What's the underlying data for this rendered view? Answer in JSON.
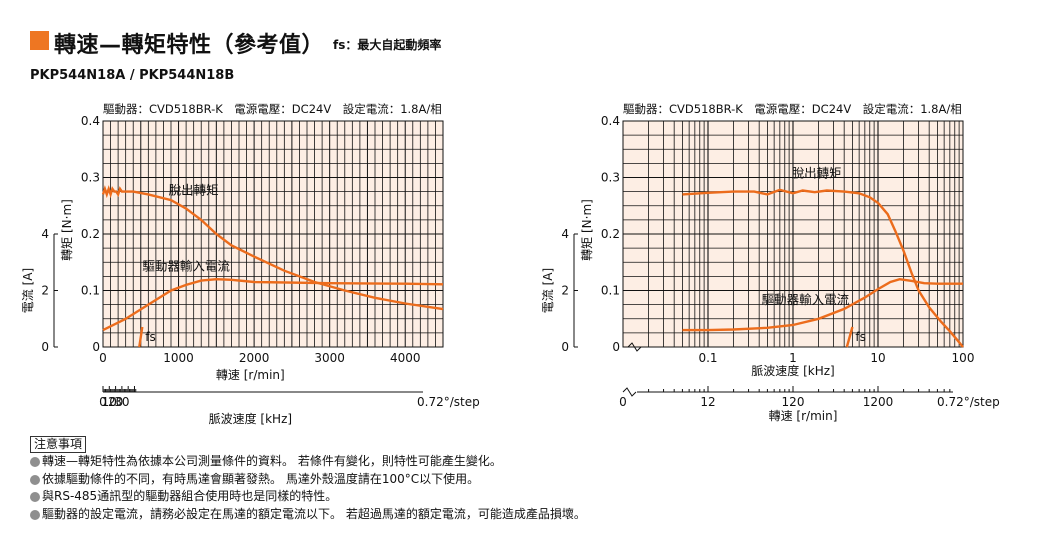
{
  "header": {
    "title": "轉速—轉矩特性（參考值）",
    "note": "fs：最大自起動頻率",
    "model": "PKP544N18A / PKP544N18B"
  },
  "colors": {
    "accent": "#ee7622",
    "plot_bg": "#fdeee4",
    "curve": "#ec6c1c",
    "grid": "#111111"
  },
  "chart_data": [
    {
      "type": "line",
      "caption": "驅動器：CVD518BR-K　電源電壓：DC24V　設定電流：1.8A/相",
      "xlabel": "轉速 [r/min]",
      "x_ticks": [
        "0",
        "1000",
        "2000",
        "3000",
        "4000"
      ],
      "xlim": [
        0,
        4500
      ],
      "ylabel": "轉矩 [N·m]",
      "y_ticks": [
        "0",
        "0.1",
        "0.2",
        "0.3",
        "0.4"
      ],
      "ylim": [
        0,
        0.4
      ],
      "y2label": "電流 [A]",
      "y2_ticks": [
        "0",
        "2",
        "4"
      ],
      "y2lim": [
        0,
        8
      ],
      "x2label": "脈波速度 [kHz]",
      "x2_ticks": [
        "0",
        "10",
        "20",
        "30"
      ],
      "x2_end": "0.72°/step",
      "fs_label": "fs",
      "series": [
        {
          "name": "脫出轉矩",
          "x": [
            0,
            25,
            50,
            75,
            100,
            125,
            150,
            175,
            200,
            225,
            250,
            300,
            400,
            600,
            900,
            1100,
            1300,
            1500,
            1700,
            2000,
            2400,
            2800,
            3200,
            3600,
            4000,
            4500
          ],
          "y": [
            0.27,
            0.28,
            0.27,
            0.28,
            0.27,
            0.28,
            0.275,
            0.275,
            0.27,
            0.28,
            0.275,
            0.275,
            0.275,
            0.27,
            0.26,
            0.245,
            0.225,
            0.2,
            0.18,
            0.16,
            0.135,
            0.115,
            0.1,
            0.087,
            0.077,
            0.067
          ]
        },
        {
          "name": "驅動器輸入電流",
          "axis": "current",
          "x": [
            0,
            300,
            600,
            900,
            1100,
            1300,
            1500,
            1700,
            2000,
            3000,
            4000,
            4500
          ],
          "y": [
            0.6,
            1.0,
            1.5,
            2.0,
            2.2,
            2.35,
            2.4,
            2.38,
            2.3,
            2.26,
            2.24,
            2.22
          ]
        }
      ]
    },
    {
      "type": "line",
      "x_scale": "log",
      "caption": "驅動器：CVD518BR-K　電源電壓：DC24V　設定電流：1.8A/相",
      "xlabel": "脈波速度 [kHz]",
      "x_ticks": [
        "0.1",
        "1",
        "10",
        "100"
      ],
      "xlim": [
        0.01,
        100
      ],
      "ylabel": "轉矩 [N·m]",
      "y_ticks": [
        "0",
        "0.1",
        "0.2",
        "0.3",
        "0.4"
      ],
      "ylim": [
        0,
        0.4
      ],
      "y2label": "電流 [A]",
      "y2_ticks": [
        "0",
        "2",
        "4"
      ],
      "y2lim": [
        0,
        8
      ],
      "x2label": "轉速 [r/min]",
      "x2_ticks": [
        "0",
        "12",
        "120",
        "1200"
      ],
      "x2_zero": "0",
      "x2_end": "0.72°/step",
      "fs_label": "fs",
      "series": [
        {
          "name": "脫出轉矩",
          "x": [
            0.05,
            0.1,
            0.2,
            0.35,
            0.5,
            0.7,
            1,
            1.3,
            1.8,
            2.5,
            4,
            6,
            8,
            10,
            13,
            16,
            20,
            25,
            30,
            40,
            55,
            70,
            85,
            100
          ],
          "y": [
            0.27,
            0.273,
            0.275,
            0.275,
            0.27,
            0.278,
            0.272,
            0.277,
            0.274,
            0.277,
            0.275,
            0.272,
            0.265,
            0.255,
            0.235,
            0.205,
            0.17,
            0.13,
            0.1,
            0.07,
            0.045,
            0.028,
            0.013,
            0.0
          ]
        },
        {
          "name": "驅動器輸入電流",
          "axis": "current",
          "x": [
            0.05,
            0.1,
            0.2,
            0.5,
            1,
            2,
            4,
            7,
            10,
            14,
            18,
            25,
            35,
            50,
            70,
            100
          ],
          "y": [
            0.6,
            0.6,
            0.62,
            0.68,
            0.78,
            1.0,
            1.35,
            1.75,
            2.05,
            2.3,
            2.4,
            2.34,
            2.26,
            2.24,
            2.24,
            2.24
          ]
        }
      ]
    }
  ],
  "notes": {
    "heading": "注意事項",
    "items": [
      "轉速—轉矩特性為依據本公司測量條件的資料。 若條件有變化，則特性可能產生變化。",
      "依據驅動條件的不同，有時馬達會顯著發熱。 馬達外殼溫度請在100°C以下使用。",
      "與RS-485通訊型的驅動器組合使用時也是同樣的特性。",
      "驅動器的設定電流，請務必設定在馬達的額定電流以下。 若超過馬達的額定電流，可能造成產品損壞。"
    ]
  }
}
